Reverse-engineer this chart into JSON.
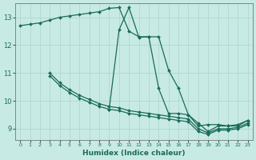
{
  "xlabel": "Humidex (Indice chaleur)",
  "bg_color": "#c8eae4",
  "grid_color": "#b0d8d0",
  "line_color": "#1a6b5a",
  "xlim": [
    -0.5,
    23.5
  ],
  "ylim": [
    8.6,
    13.5
  ],
  "yticks": [
    9,
    10,
    11,
    12,
    13
  ],
  "xticks": [
    0,
    1,
    2,
    3,
    4,
    5,
    6,
    7,
    8,
    9,
    10,
    11,
    12,
    13,
    14,
    15,
    16,
    17,
    18,
    19,
    20,
    21,
    22,
    23
  ],
  "series": [
    {
      "x": [
        0,
        1,
        2,
        3,
        4,
        5,
        6,
        7,
        8,
        9,
        10,
        11,
        12,
        13,
        14,
        15,
        16,
        17,
        18,
        19,
        20,
        21,
        22,
        23
      ],
      "y": [
        12.7,
        12.75,
        12.8,
        12.9,
        13.0,
        13.05,
        13.1,
        13.15,
        13.2,
        13.32,
        13.35,
        12.5,
        12.3,
        12.3,
        12.3,
        11.1,
        10.45,
        9.5,
        9.1,
        9.15,
        9.15,
        9.1,
        9.15,
        9.3
      ]
    },
    {
      "x": [
        9,
        10,
        11,
        12,
        13,
        14,
        15,
        16,
        17,
        18,
        19,
        20,
        21,
        22,
        23
      ],
      "y": [
        9.7,
        12.55,
        13.35,
        12.28,
        12.3,
        10.45,
        9.55,
        9.55,
        9.5,
        9.2,
        8.9,
        9.1,
        9.1,
        9.1,
        9.3
      ]
    },
    {
      "x": [
        3,
        4,
        5,
        6,
        7,
        8,
        9,
        10,
        11,
        12,
        13,
        14,
        15,
        16,
        17,
        18,
        19,
        20,
        21,
        22,
        23
      ],
      "y": [
        11.0,
        10.65,
        10.4,
        10.2,
        10.05,
        9.9,
        9.8,
        9.75,
        9.65,
        9.6,
        9.55,
        9.5,
        9.45,
        9.4,
        9.35,
        9.0,
        8.85,
        9.0,
        9.0,
        9.05,
        9.2
      ]
    },
    {
      "x": [
        3,
        4,
        5,
        6,
        7,
        8,
        9,
        10,
        11,
        12,
        13,
        14,
        15,
        16,
        17,
        18,
        19,
        20,
        21,
        22,
        23
      ],
      "y": [
        10.9,
        10.55,
        10.3,
        10.1,
        9.95,
        9.8,
        9.7,
        9.65,
        9.55,
        9.5,
        9.45,
        9.4,
        9.35,
        9.3,
        9.25,
        8.9,
        8.8,
        8.95,
        8.95,
        9.0,
        9.15
      ]
    }
  ]
}
